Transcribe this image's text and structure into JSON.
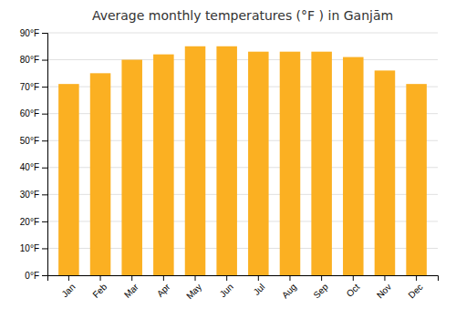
{
  "chart_data": {
    "type": "bar",
    "title": "Average monthly temperatures (°F ) in Ganjām",
    "categories": [
      "Jan",
      "Feb",
      "Mar",
      "Apr",
      "May",
      "Jun",
      "Jul",
      "Aug",
      "Sep",
      "Oct",
      "Nov",
      "Dec"
    ],
    "values": [
      71,
      75,
      80,
      82,
      85,
      85,
      83,
      83,
      83,
      81,
      76,
      71
    ],
    "color": "#FBB022",
    "ylim": [
      0,
      90
    ],
    "yticks": [
      {
        "value": 0,
        "label": "0°F"
      },
      {
        "value": 10,
        "label": "10°F"
      },
      {
        "value": 20,
        "label": "20°F"
      },
      {
        "value": 30,
        "label": "30°F"
      },
      {
        "value": 40,
        "label": "40°F"
      },
      {
        "value": 50,
        "label": "50°F"
      },
      {
        "value": 60,
        "label": "60°F"
      },
      {
        "value": 70,
        "label": "70°F"
      },
      {
        "value": 80,
        "label": "80°F"
      },
      {
        "value": 90,
        "label": "90°F"
      }
    ],
    "grid": true
  }
}
